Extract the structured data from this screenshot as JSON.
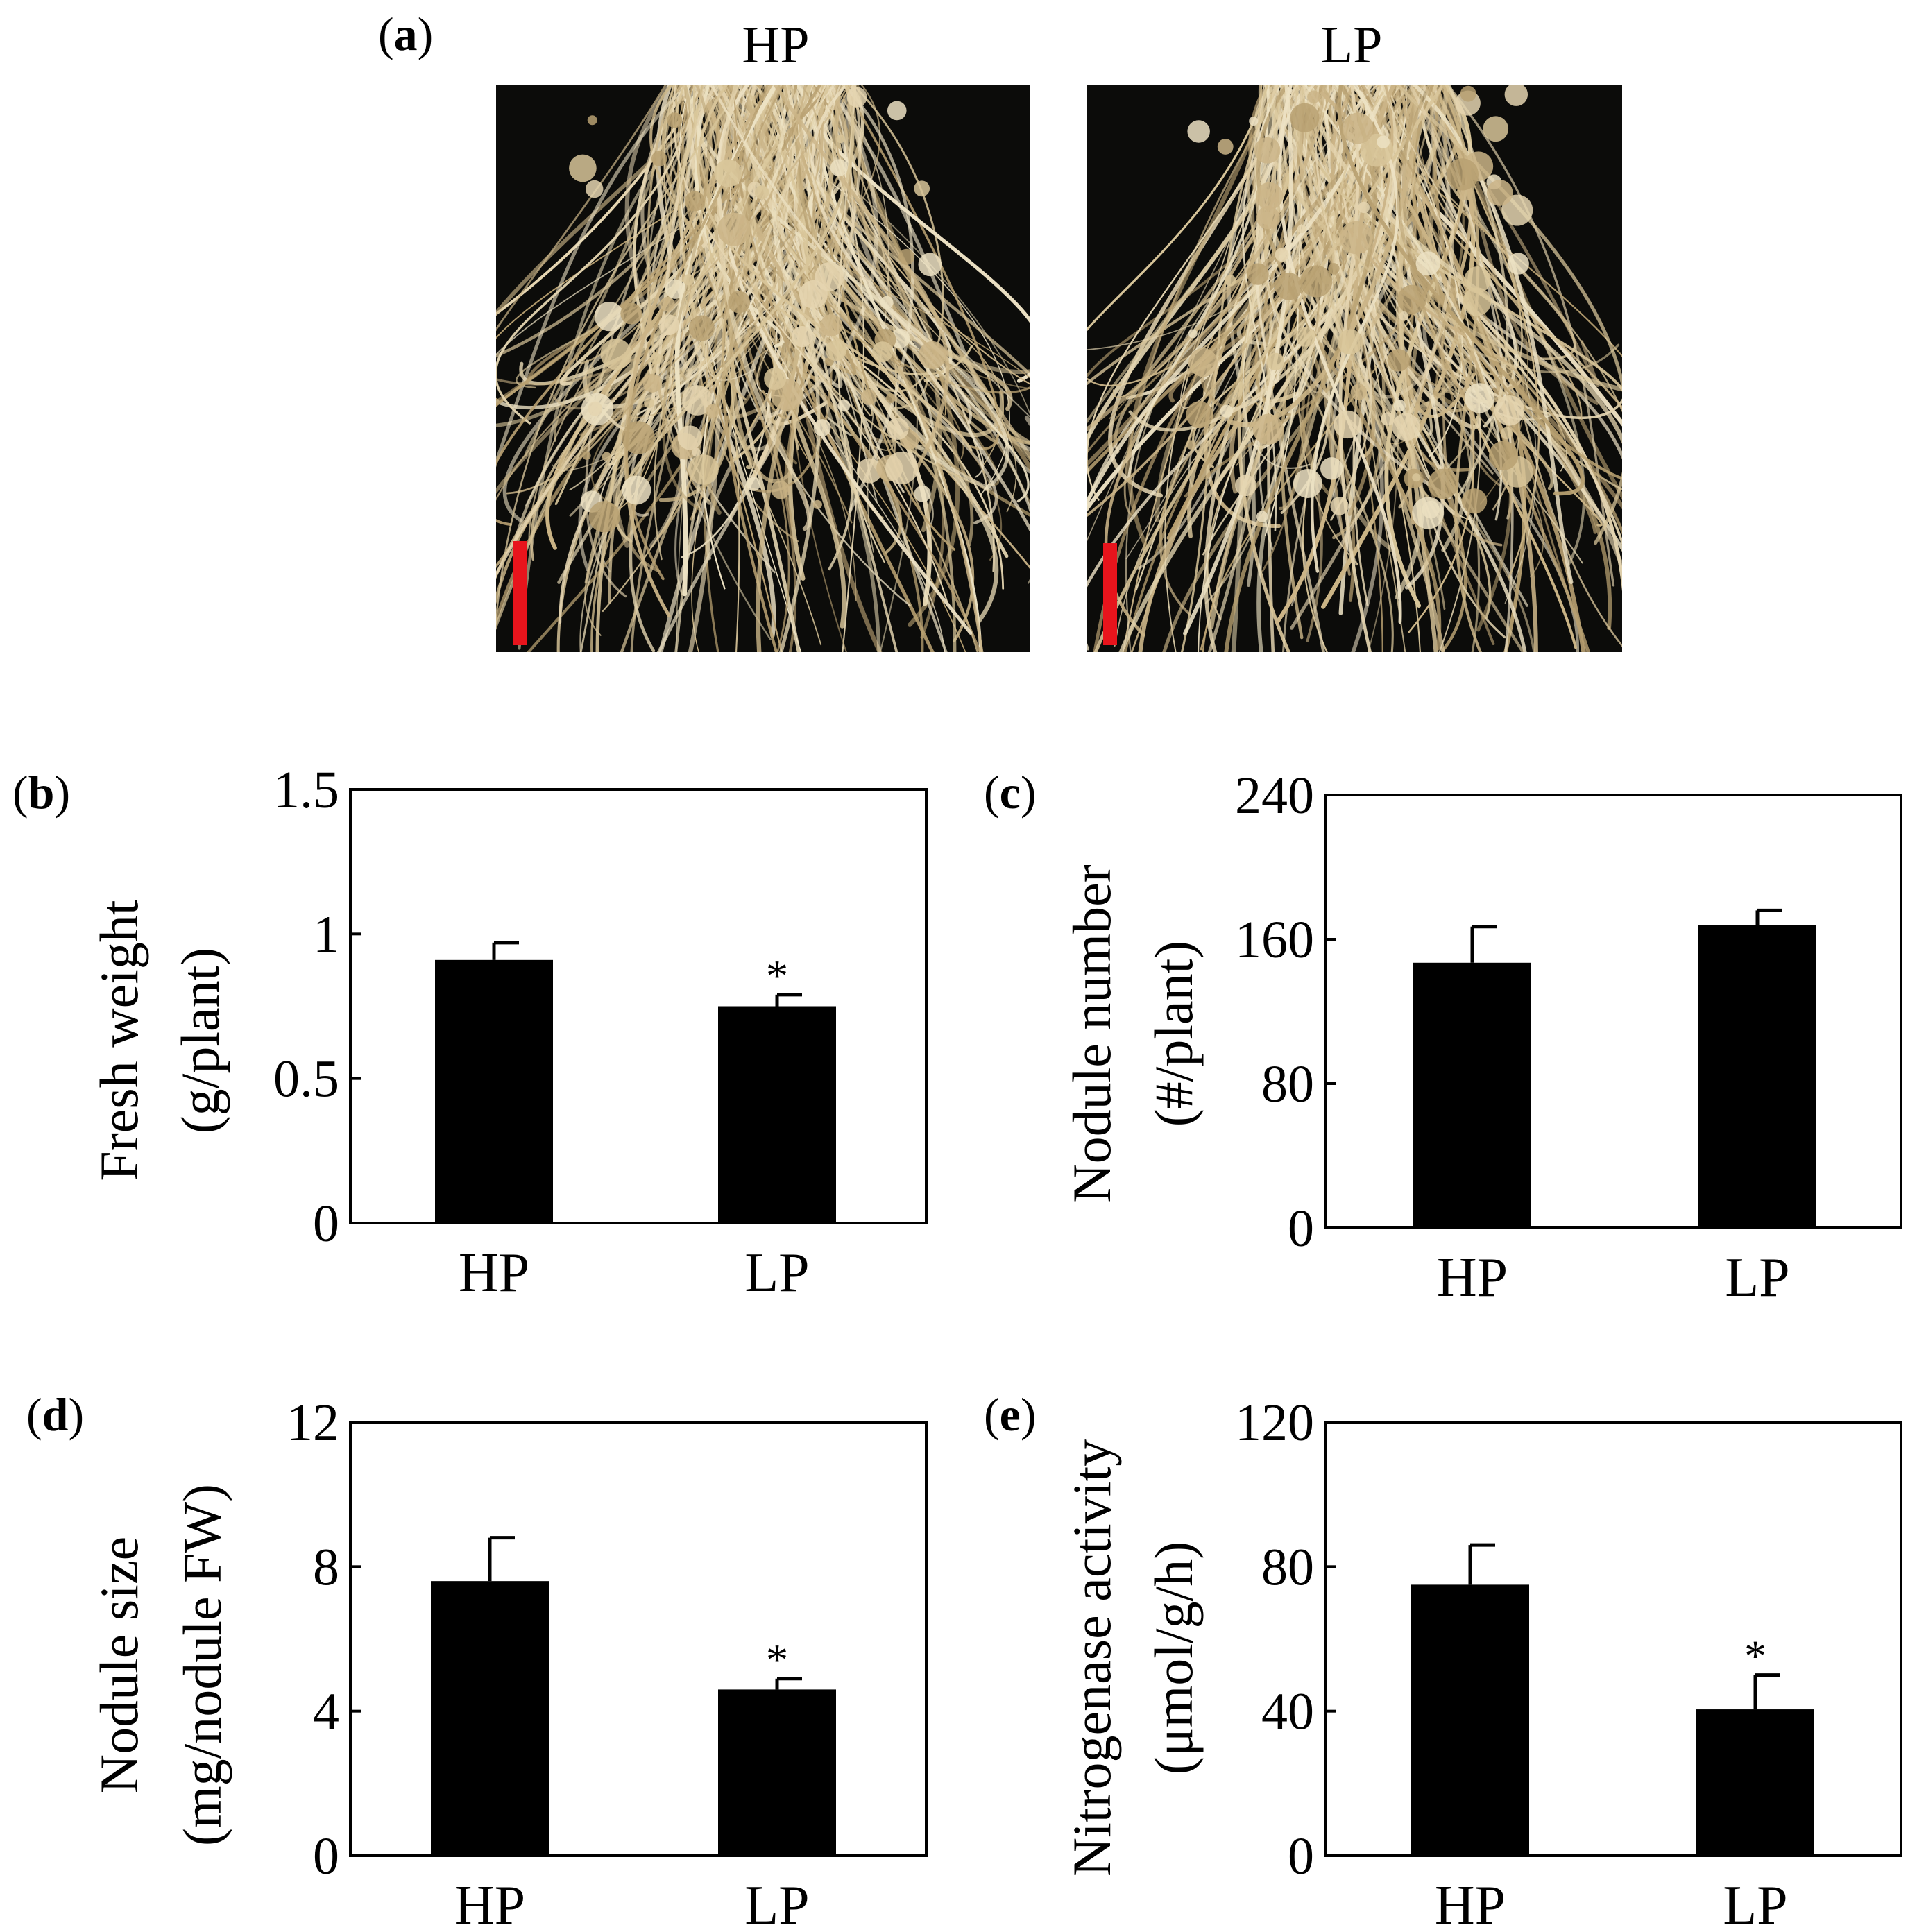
{
  "figure": {
    "panel_a": {
      "label": "a",
      "photos": [
        {
          "title": "HP"
        },
        {
          "title": "LP"
        }
      ],
      "scale_bar_color": "#e8141c",
      "background_color": "#050505",
      "root_color": "#d7c49c"
    }
  },
  "chart_data": [
    {
      "panel": "b",
      "type": "bar",
      "categories": [
        "HP",
        "LP"
      ],
      "values": [
        0.91,
        0.75
      ],
      "errors": [
        0.06,
        0.04
      ],
      "significance": [
        "",
        "*"
      ],
      "ylabel": [
        "Fresh weight",
        "(g/plant)"
      ],
      "yticks": [
        "0",
        "0.5",
        "1",
        "1.5"
      ],
      "ylim": [
        0,
        1.5
      ],
      "bar_color": "#000000",
      "grid": false
    },
    {
      "panel": "c",
      "type": "bar",
      "categories": [
        "HP",
        "LP"
      ],
      "values": [
        147,
        168
      ],
      "errors": [
        20,
        8
      ],
      "significance": [
        "",
        ""
      ],
      "ylabel": [
        "Nodule number",
        "(#/plant)"
      ],
      "yticks": [
        "0",
        "80",
        "160",
        "240"
      ],
      "ylim": [
        0,
        240
      ],
      "bar_color": "#000000",
      "grid": false
    },
    {
      "panel": "d",
      "type": "bar",
      "categories": [
        "HP",
        "LP"
      ],
      "values": [
        7.6,
        4.6
      ],
      "errors": [
        1.2,
        0.3
      ],
      "significance": [
        "",
        "*"
      ],
      "ylabel": [
        "Nodule size",
        "(mg/nodule FW)"
      ],
      "yticks": [
        "0",
        "4",
        "8",
        "12"
      ],
      "ylim": [
        0,
        12
      ],
      "bar_color": "#000000",
      "grid": false
    },
    {
      "panel": "e",
      "type": "bar",
      "categories": [
        "HP",
        "LP"
      ],
      "values": [
        75,
        40.5
      ],
      "errors": [
        11,
        9.5
      ],
      "significance": [
        "",
        "*"
      ],
      "ylabel": [
        "Nitrogenase activity",
        "(μmol/g/h)"
      ],
      "yticks": [
        "0",
        "40",
        "80",
        "120"
      ],
      "ylim": [
        0,
        120
      ],
      "bar_color": "#000000",
      "grid": false
    }
  ]
}
